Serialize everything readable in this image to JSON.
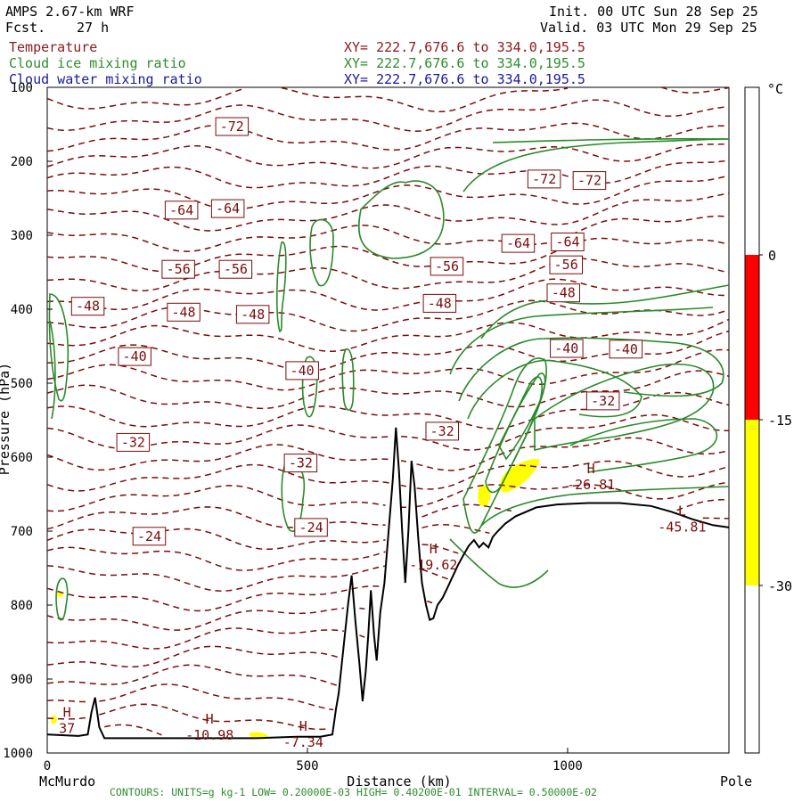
{
  "header": {
    "model": "AMPS 2.67-km WRF",
    "fcst_label": "Fcst.",
    "fcst_value": "27 h",
    "init": "Init. 00 UTC Sun 28 Sep 25",
    "valid": "Valid. 03 UTC Mon 29 Sep 25"
  },
  "fields": [
    {
      "label": "Temperature",
      "xy": "XY= 222.7,676.6 to 334.0,195.5",
      "color": "#8b1a1a"
    },
    {
      "label": "Cloud ice mixing ratio",
      "xy": "XY= 222.7,676.6 to 334.0,195.5",
      "color": "#2e8b2e"
    },
    {
      "label": "Cloud water mixing ratio",
      "xy": "XY= 222.7,676.6 to 334.0,195.5",
      "color": "#1a1a99"
    }
  ],
  "colors": {
    "temperature": "#7a0c0c",
    "ice": "#2a8a2a",
    "terrain": "#000000",
    "water_fill": "#ffff00",
    "scale_red": "#ff0000",
    "scale_yellow": "#ffff00"
  },
  "footer": "CONTOURS:  UNITS=g kg-1  LOW= 0.20000E-03  HIGH= 0.40200E-01  INTERVAL=  0.50000E-02",
  "chart_data": {
    "type": "contour-cross-section",
    "xlabel": "Distance (km)",
    "ylabel": "Pressure (hPa)",
    "xlim": [
      0,
      1310
    ],
    "ylim": [
      1000,
      100
    ],
    "x_ticks": [
      {
        "value": 0,
        "label": "0"
      },
      {
        "value": 500,
        "label": "500"
      },
      {
        "value": 1000,
        "label": "1000"
      }
    ],
    "x_end_labels": {
      "left": "McMurdo",
      "right": "Pole"
    },
    "y_ticks": [
      {
        "value": 100,
        "label": "100"
      },
      {
        "value": 200,
        "label": "200"
      },
      {
        "value": 300,
        "label": "300"
      },
      {
        "value": 400,
        "label": "400"
      },
      {
        "value": 500,
        "label": "500"
      },
      {
        "value": 600,
        "label": "600"
      },
      {
        "value": 700,
        "label": "700"
      },
      {
        "value": 800,
        "label": "800"
      },
      {
        "value": 900,
        "label": "900"
      },
      {
        "value": 1000,
        "label": "1000"
      }
    ],
    "temperature_contour_labels": [
      {
        "x": 355,
        "p": 153,
        "text": "-72"
      },
      {
        "x": 955,
        "p": 224,
        "text": "-72"
      },
      {
        "x": 1042,
        "p": 226,
        "text": "-72"
      },
      {
        "x": 258,
        "p": 266,
        "text": "-64"
      },
      {
        "x": 347,
        "p": 264,
        "text": "-64"
      },
      {
        "x": 905,
        "p": 311,
        "text": "-64"
      },
      {
        "x": 1000,
        "p": 309,
        "text": "-64"
      },
      {
        "x": 252,
        "p": 346,
        "text": "-56"
      },
      {
        "x": 362,
        "p": 346,
        "text": "-56"
      },
      {
        "x": 768,
        "p": 342,
        "text": "-56"
      },
      {
        "x": 997,
        "p": 340,
        "text": "-56"
      },
      {
        "x": 78,
        "p": 396,
        "text": "-48"
      },
      {
        "x": 262,
        "p": 404,
        "text": "-48"
      },
      {
        "x": 395,
        "p": 407,
        "text": "-48"
      },
      {
        "x": 754,
        "p": 392,
        "text": "-48"
      },
      {
        "x": 992,
        "p": 378,
        "text": "-48"
      },
      {
        "x": 168,
        "p": 464,
        "text": "-40"
      },
      {
        "x": 490,
        "p": 483,
        "text": "-40"
      },
      {
        "x": 998,
        "p": 453,
        "text": "-40"
      },
      {
        "x": 1112,
        "p": 454,
        "text": "-40"
      },
      {
        "x": 1068,
        "p": 524,
        "text": "-32"
      },
      {
        "x": 165,
        "p": 580,
        "text": "-32"
      },
      {
        "x": 487,
        "p": 608,
        "text": "-32"
      },
      {
        "x": 759,
        "p": 565,
        "text": "-32"
      },
      {
        "x": 196,
        "p": 707,
        "text": "-24"
      },
      {
        "x": 507,
        "p": 695,
        "text": "-24"
      }
    ],
    "extrema": [
      {
        "kind": "H",
        "value": "-26.81",
        "x": 1045,
        "p": 634
      },
      {
        "kind": "L",
        "value": "-45.81",
        "x": 1220,
        "p": 691
      },
      {
        "kind": "H",
        "value": "-19.62",
        "x": 742,
        "p": 742
      },
      {
        "kind": "H",
        "value": "37",
        "x": 38,
        "p": 963
      },
      {
        "kind": "H",
        "value": "-10.98",
        "x": 312,
        "p": 972
      },
      {
        "kind": "H",
        "value": "-7.34",
        "x": 492,
        "p": 982
      }
    ],
    "terrain_profile": [
      [
        0,
        975
      ],
      [
        60,
        977
      ],
      [
        78,
        975
      ],
      [
        85,
        945
      ],
      [
        92,
        925
      ],
      [
        100,
        965
      ],
      [
        110,
        980
      ],
      [
        200,
        980
      ],
      [
        400,
        980
      ],
      [
        480,
        978
      ],
      [
        525,
        978
      ],
      [
        540,
        976
      ],
      [
        548,
        975
      ],
      [
        555,
        940
      ],
      [
        560,
        920
      ],
      [
        566,
        880
      ],
      [
        572,
        840
      ],
      [
        578,
        800
      ],
      [
        585,
        760
      ],
      [
        592,
        820
      ],
      [
        600,
        880
      ],
      [
        606,
        930
      ],
      [
        612,
        890
      ],
      [
        617,
        840
      ],
      [
        622,
        780
      ],
      [
        628,
        840
      ],
      [
        633,
        875
      ],
      [
        640,
        810
      ],
      [
        648,
        770
      ],
      [
        656,
        700
      ],
      [
        664,
        630
      ],
      [
        670,
        560
      ],
      [
        676,
        620
      ],
      [
        682,
        700
      ],
      [
        688,
        770
      ],
      [
        694,
        700
      ],
      [
        700,
        605
      ],
      [
        706,
        640
      ],
      [
        713,
        710
      ],
      [
        720,
        770
      ],
      [
        728,
        800
      ],
      [
        735,
        820
      ],
      [
        742,
        818
      ],
      [
        750,
        800
      ],
      [
        760,
        790
      ],
      [
        770,
        775
      ],
      [
        780,
        760
      ],
      [
        790,
        745
      ],
      [
        800,
        732
      ],
      [
        810,
        720
      ],
      [
        820,
        712
      ],
      [
        830,
        722
      ],
      [
        838,
        716
      ],
      [
        848,
        722
      ],
      [
        856,
        708
      ],
      [
        866,
        700
      ],
      [
        880,
        690
      ],
      [
        900,
        680
      ],
      [
        940,
        668
      ],
      [
        980,
        664
      ],
      [
        1040,
        662
      ],
      [
        1100,
        662
      ],
      [
        1160,
        666
      ],
      [
        1200,
        674
      ],
      [
        1240,
        684
      ],
      [
        1280,
        692
      ],
      [
        1310,
        695
      ]
    ],
    "color_scale": {
      "unit": "°C",
      "ticks": [
        "0",
        "-15",
        "-30"
      ],
      "bands": [
        {
          "from": "top",
          "to": "0",
          "color": "#ffffff"
        },
        {
          "from": "0",
          "to": "-15",
          "color": "#ff0000"
        },
        {
          "from": "-15",
          "to": "-30",
          "color": "#ffff00"
        },
        {
          "from": "-30",
          "to": "bottom",
          "color": "#ffffff"
        }
      ]
    }
  }
}
